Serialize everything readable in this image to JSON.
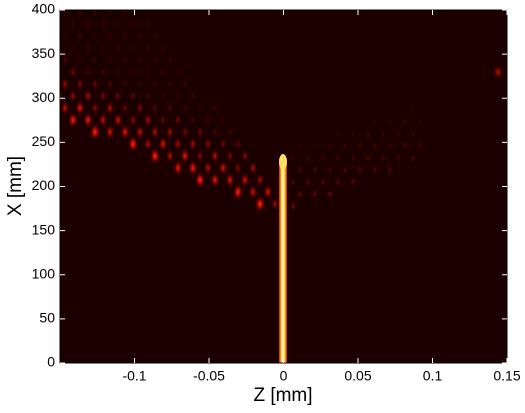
{
  "chart_data": {
    "type": "heatmap",
    "xlabel": "Z [mm]",
    "ylabel": "X [mm]",
    "xlim": [
      -0.15,
      0.15
    ],
    "xticks": [
      -0.1,
      -0.05,
      0,
      0.05,
      0.1,
      0.15
    ],
    "ylim": [
      0,
      400
    ],
    "yticks": [
      0,
      50,
      100,
      150,
      200,
      250,
      300,
      350,
      400
    ],
    "background": "#1c0000"
  }
}
